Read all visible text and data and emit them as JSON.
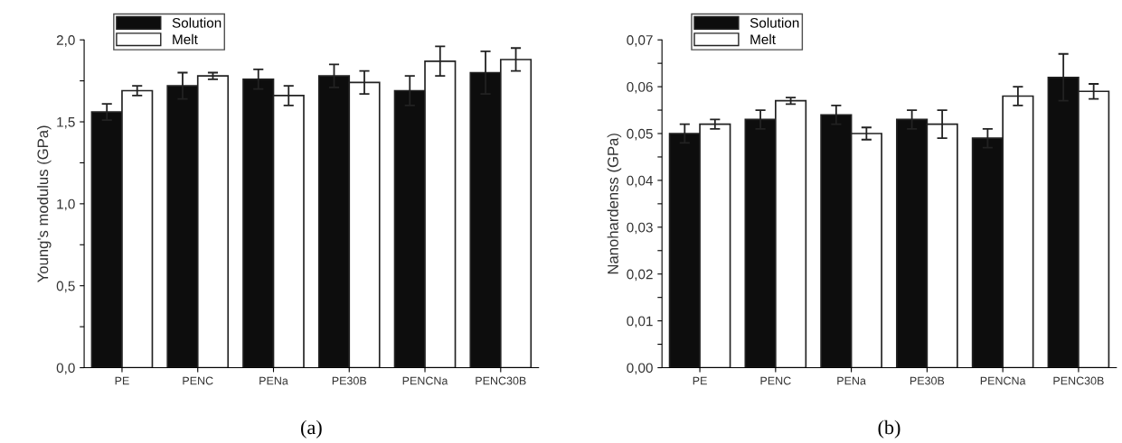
{
  "chart_data": [
    {
      "type": "bar",
      "ylabel": "Young's modulus (GPa)",
      "annotations": [
        "(a)"
      ],
      "categories": [
        "PE",
        "PENC",
        "PENa",
        "PE30B",
        "PENCNa",
        "PENC30B"
      ],
      "series": [
        {
          "name": "Solution",
          "color": "#0d0d0d",
          "values": [
            1.56,
            1.72,
            1.76,
            1.78,
            1.69,
            1.8
          ],
          "errors": [
            0.05,
            0.08,
            0.06,
            0.07,
            0.09,
            0.13
          ]
        },
        {
          "name": "Melt",
          "color": "#ffffff",
          "values": [
            1.69,
            1.78,
            1.66,
            1.74,
            1.87,
            1.88
          ],
          "errors": [
            0.03,
            0.02,
            0.06,
            0.07,
            0.09,
            0.07
          ]
        }
      ],
      "ylim": [
        0,
        2.0
      ],
      "yticks": [
        {
          "value": 0,
          "label": "0,0"
        },
        {
          "value": 0.25,
          "label": null
        },
        {
          "value": 0.5,
          "label": "0,5"
        },
        {
          "value": 0.75,
          "label": null
        },
        {
          "value": 1.0,
          "label": "1,0"
        },
        {
          "value": 1.25,
          "label": null
        },
        {
          "value": 1.5,
          "label": "1,5"
        },
        {
          "value": 1.75,
          "label": null
        },
        {
          "value": 2.0,
          "label": "2,0"
        }
      ],
      "grid": false,
      "legend": "top left"
    },
    {
      "type": "bar",
      "ylabel": "Nanohardenss (GPa)",
      "annotations": [
        "(b)"
      ],
      "categories": [
        "PE",
        "PENC",
        "PENa",
        "PE30B",
        "PENCNa",
        "PENC30B"
      ],
      "series": [
        {
          "name": "Solution",
          "color": "#0d0d0d",
          "values": [
            0.05,
            0.053,
            0.054,
            0.053,
            0.049,
            0.062
          ],
          "errors": [
            0.002,
            0.002,
            0.002,
            0.002,
            0.002,
            0.005
          ]
        },
        {
          "name": "Melt",
          "color": "#ffffff",
          "values": [
            0.052,
            0.057,
            0.05,
            0.052,
            0.058,
            0.059
          ],
          "errors": [
            0.001,
            0.0007,
            0.0013,
            0.003,
            0.002,
            0.0016
          ]
        }
      ],
      "ylim": [
        0,
        0.07
      ],
      "yticks": [
        {
          "value": 0,
          "label": "0,00"
        },
        {
          "value": 0.005,
          "label": null
        },
        {
          "value": 0.01,
          "label": "0,01"
        },
        {
          "value": 0.015,
          "label": null
        },
        {
          "value": 0.02,
          "label": "0,02"
        },
        {
          "value": 0.025,
          "label": null
        },
        {
          "value": 0.03,
          "label": "0,03"
        },
        {
          "value": 0.035,
          "label": null
        },
        {
          "value": 0.04,
          "label": "0,04"
        },
        {
          "value": 0.045,
          "label": null
        },
        {
          "value": 0.05,
          "label": "0,05"
        },
        {
          "value": 0.055,
          "label": null
        },
        {
          "value": 0.06,
          "label": "0,06"
        },
        {
          "value": 0.065,
          "label": null
        },
        {
          "value": 0.07,
          "label": "0,07"
        }
      ],
      "grid": false,
      "legend": "top left"
    }
  ]
}
